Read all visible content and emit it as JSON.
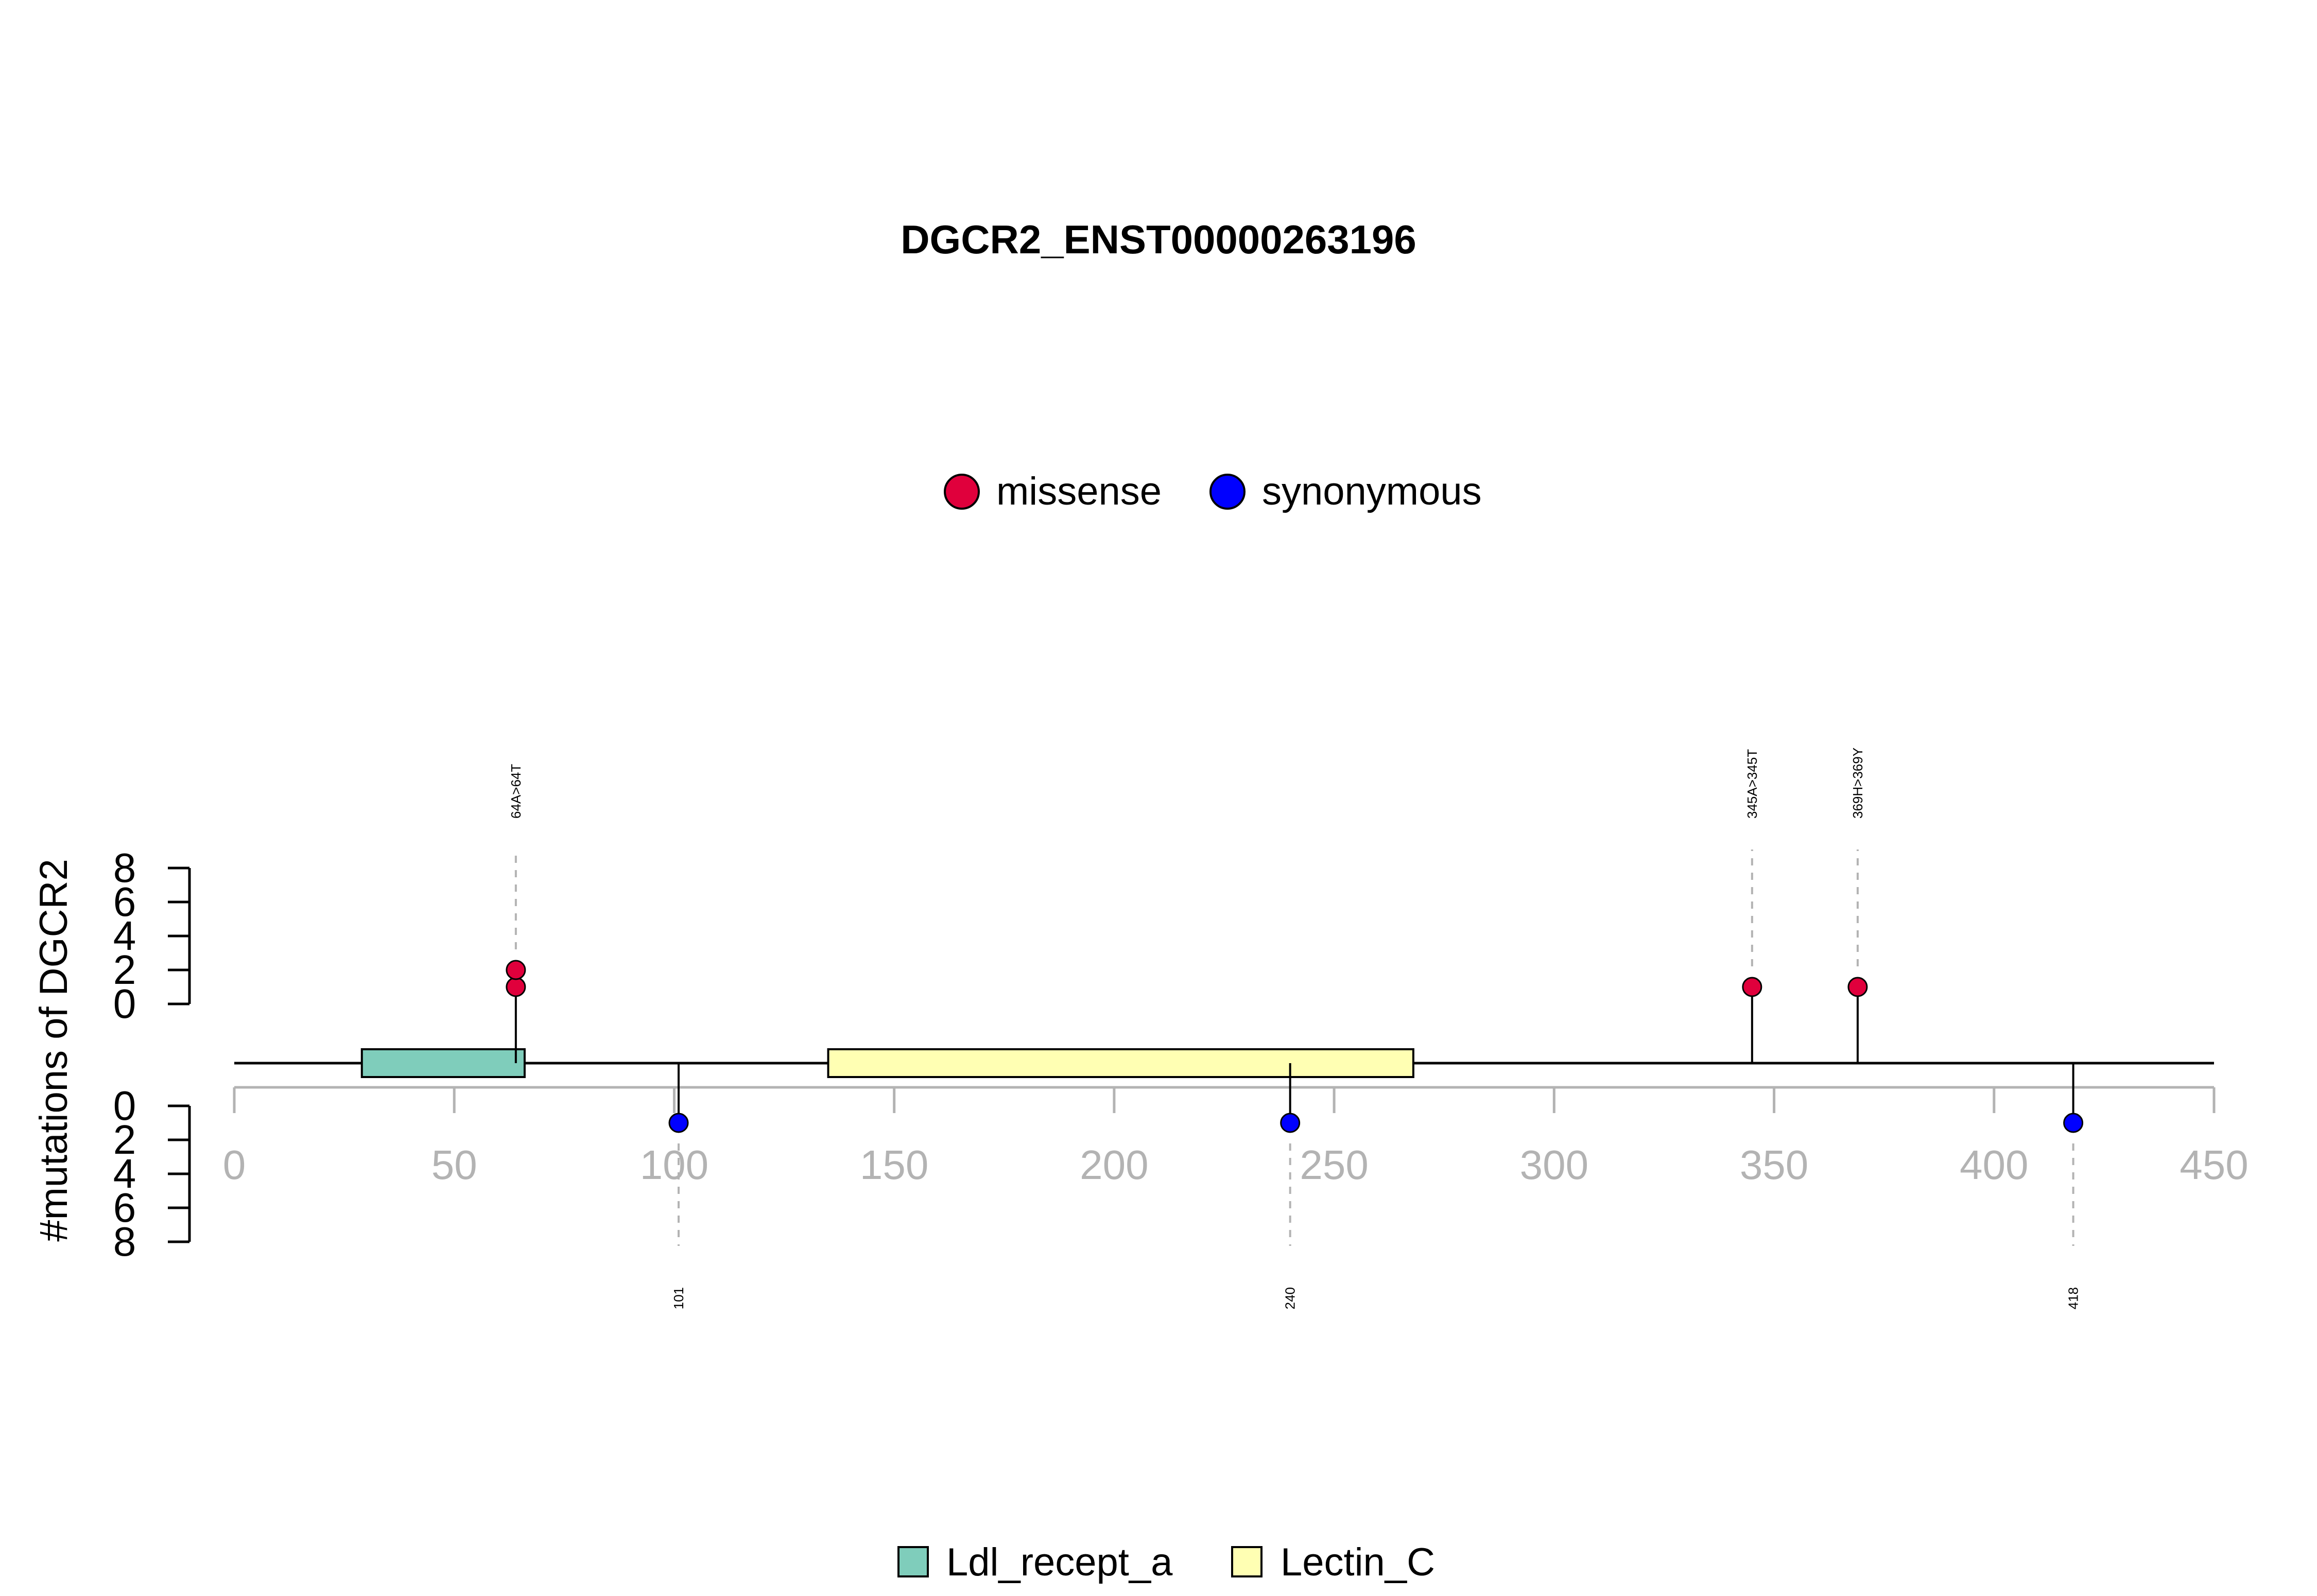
{
  "chart_data": {
    "type": "lollipop",
    "title": "DGCR2_ENST00000263196",
    "ylabel": "#mutations of DGCR2",
    "xlim": [
      0,
      450
    ],
    "x_ticks": [
      0,
      50,
      100,
      150,
      200,
      250,
      300,
      350,
      400,
      450
    ],
    "y_ticks": [
      0,
      2,
      4,
      6,
      8
    ],
    "ylim": [
      0,
      8
    ],
    "protein_length": 450,
    "legend_mutations": [
      {
        "label": "missense",
        "color": "#E0003C"
      },
      {
        "label": "synonymous",
        "color": "#0000FF"
      }
    ],
    "legend_domains": [
      {
        "label": "Ldl_recept_a",
        "color": "#7FCDBB"
      },
      {
        "label": "Lectin_C",
        "color": "#FFFFB3"
      }
    ],
    "domains": [
      {
        "name": "Ldl_recept_a",
        "start": 29,
        "end": 66,
        "color": "#7FCDBB"
      },
      {
        "name": "Lectin_C",
        "start": 135,
        "end": 268,
        "color": "#FFFFB3"
      }
    ],
    "mutations": [
      {
        "position": 64,
        "count": 2,
        "type": "missense",
        "label": "64A>64T",
        "side": "top"
      },
      {
        "position": 345,
        "count": 1,
        "type": "missense",
        "label": "345A>345T",
        "side": "top"
      },
      {
        "position": 369,
        "count": 1,
        "type": "missense",
        "label": "369H>369Y",
        "side": "top"
      },
      {
        "position": 101,
        "count": 1,
        "type": "synonymous",
        "label": "101",
        "side": "bottom"
      },
      {
        "position": 240,
        "count": 1,
        "type": "synonymous",
        "label": "240",
        "side": "bottom"
      },
      {
        "position": 418,
        "count": 1,
        "type": "synonymous",
        "label": "418",
        "side": "bottom"
      }
    ],
    "colors": {
      "missense": "#E0003C",
      "synonymous": "#0000FF",
      "axis_gray": "#B3B3B3"
    }
  }
}
